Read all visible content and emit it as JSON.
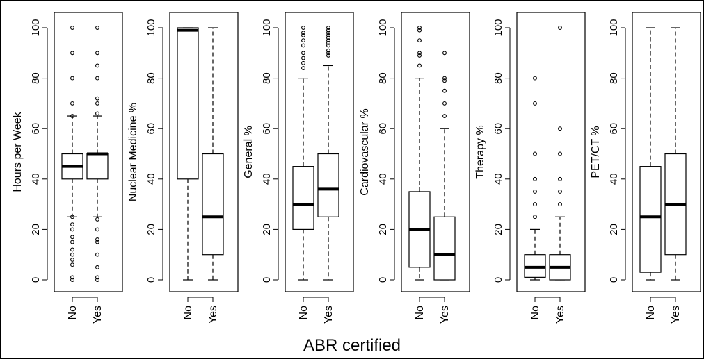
{
  "figure": {
    "xlabel": "ABR certified"
  },
  "chart_data": [
    {
      "type": "box",
      "ylabel": "Hours per Week",
      "categories": [
        "No",
        "Yes"
      ],
      "ylim": [
        0,
        100
      ],
      "yticks": [
        0,
        20,
        40,
        60,
        80,
        100
      ],
      "boxes": [
        {
          "min": 25,
          "q1": 40,
          "median": 45,
          "q3": 50,
          "max": 65,
          "outliers": [
            0,
            1,
            6,
            8,
            10,
            12,
            15,
            17,
            20,
            22,
            25,
            65,
            70,
            80,
            90,
            100
          ]
        },
        {
          "min": 25,
          "q1": 40,
          "median": 50,
          "q3": 50,
          "max": 65,
          "outliers": [
            0,
            1,
            5,
            10,
            15,
            16,
            20,
            24,
            66,
            70,
            72,
            80,
            85,
            90,
            100
          ]
        }
      ]
    },
    {
      "type": "box",
      "ylabel": "Nuclear Medicine %",
      "categories": [
        "No",
        "Yes"
      ],
      "ylim": [
        0,
        100
      ],
      "yticks": [
        0,
        20,
        40,
        60,
        80,
        100
      ],
      "boxes": [
        {
          "min": 0,
          "q1": 40,
          "median": 99,
          "q3": 100,
          "max": 100,
          "outliers": []
        },
        {
          "min": 0,
          "q1": 10,
          "median": 25,
          "q3": 50,
          "max": 100,
          "outliers": []
        }
      ]
    },
    {
      "type": "box",
      "ylabel": "General %",
      "categories": [
        "No",
        "Yes"
      ],
      "ylim": [
        0,
        100
      ],
      "yticks": [
        0,
        20,
        40,
        60,
        80,
        100
      ],
      "boxes": [
        {
          "min": 0,
          "q1": 20,
          "median": 30,
          "q3": 45,
          "max": 80,
          "outliers": [
            84,
            86,
            88,
            90,
            93,
            95,
            97,
            98,
            100
          ]
        },
        {
          "min": 0,
          "q1": 25,
          "median": 36,
          "q3": 50,
          "max": 85,
          "outliers": [
            89,
            90,
            91,
            93,
            94,
            95,
            96,
            97,
            98,
            99,
            100
          ]
        }
      ]
    },
    {
      "type": "box",
      "ylabel": "Cardiovascular %",
      "categories": [
        "No",
        "Yes"
      ],
      "ylim": [
        0,
        100
      ],
      "yticks": [
        0,
        20,
        40,
        60,
        80,
        100
      ],
      "boxes": [
        {
          "min": 0,
          "q1": 5,
          "median": 20,
          "q3": 35,
          "max": 80,
          "outliers": [
            85,
            89,
            90,
            95,
            99,
            100
          ]
        },
        {
          "min": 0,
          "q1": 0,
          "median": 10,
          "q3": 25,
          "max": 60,
          "outliers": [
            65,
            70,
            75,
            79,
            80,
            90
          ]
        }
      ]
    },
    {
      "type": "box",
      "ylabel": "Therapy %",
      "categories": [
        "No",
        "Yes"
      ],
      "ylim": [
        0,
        100
      ],
      "yticks": [
        0,
        20,
        40,
        60,
        80,
        100
      ],
      "boxes": [
        {
          "min": 0,
          "q1": 1,
          "median": 5,
          "q3": 10,
          "max": 20,
          "outliers": [
            25,
            30,
            35,
            40,
            50,
            70,
            80
          ]
        },
        {
          "min": 0,
          "q1": 0,
          "median": 5,
          "q3": 10,
          "max": 25,
          "outliers": [
            30,
            35,
            40,
            50,
            60,
            100
          ]
        }
      ]
    },
    {
      "type": "box",
      "ylabel": "PET/CT %",
      "categories": [
        "No",
        "Yes"
      ],
      "ylim": [
        0,
        100
      ],
      "yticks": [
        0,
        20,
        40,
        60,
        80,
        100
      ],
      "boxes": [
        {
          "min": 0,
          "q1": 3,
          "median": 25,
          "q3": 45,
          "max": 100,
          "outliers": []
        },
        {
          "min": 0,
          "q1": 10,
          "median": 30,
          "q3": 50,
          "max": 100,
          "outliers": []
        }
      ]
    }
  ]
}
